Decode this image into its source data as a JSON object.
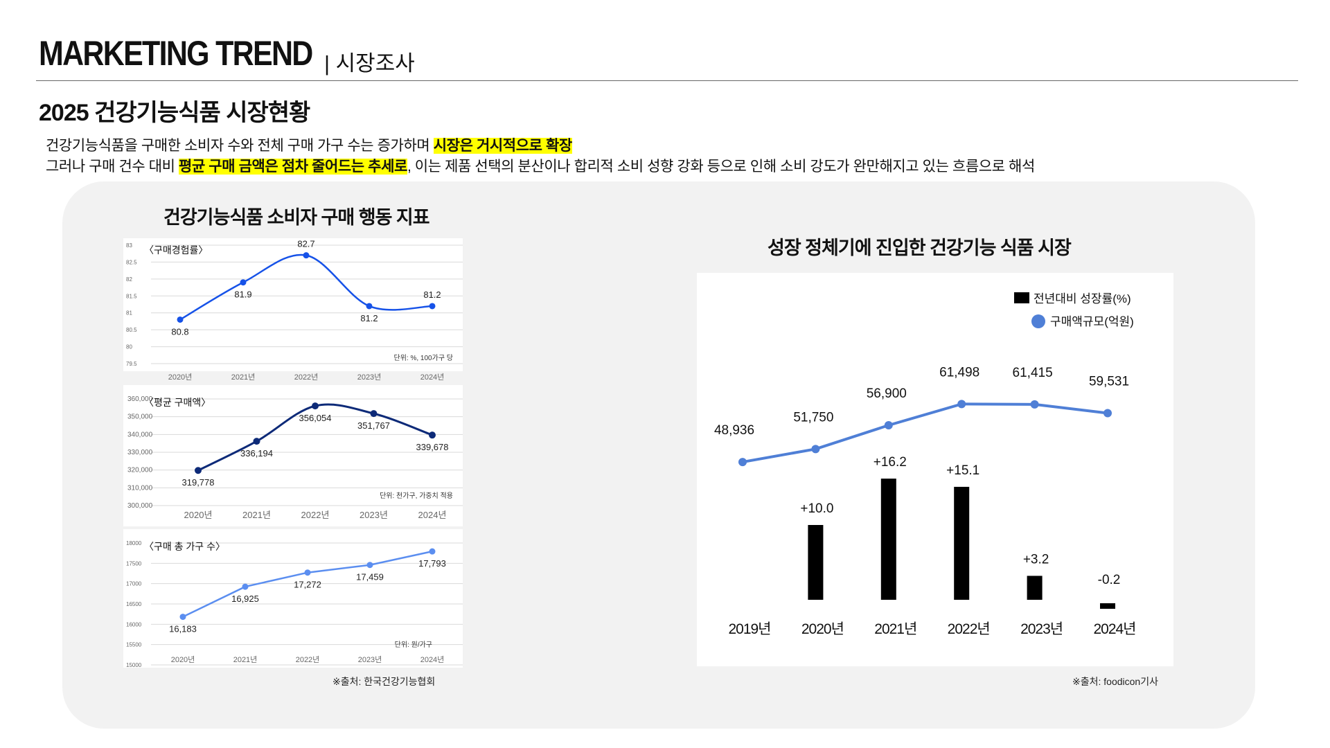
{
  "header": {
    "title": "MARKETING TREND",
    "subtitle": "| 시장조사"
  },
  "page_title": "2025 건강기능식품 시장현황",
  "summary": {
    "line1_text": "건강기능식품을 구매한 소비자 수와 전체 구매 가구 수는 증가하며 ",
    "line1_highlight": "시장은 거시적으로 확장",
    "line2_text_a": "그러나 구매 건수 대비 ",
    "line2_highlight": "평균 구매 금액은 점차 줄어드는 추세로",
    "line2_text_b": ", 이는 제품 선택의 분산이나 합리적 소비 성향 강화 등으로 인해 소비 강도가 완만해지고 있는 흐름으로 해석"
  },
  "left_panel": {
    "title": "건강기능식품 소비자 구매 행동 지표",
    "source": "※출처: 한국건강기능협회"
  },
  "right_panel": {
    "title": "성장 정체기에 진입한 건강기능 식품 시장",
    "source": "※출처: foodicon기사"
  },
  "colors": {
    "line1": "#1652e8",
    "line2": "#0d2a78",
    "line3": "#5b8ef0",
    "right_line": "#4f7fd6",
    "bar": "#000000",
    "highlight": "#ffff00"
  },
  "chart_data": [
    {
      "type": "line",
      "title": "〈구매경험률〉",
      "categories": [
        "2020년",
        "2021년",
        "2022년",
        "2023년",
        "2024년"
      ],
      "values": [
        80.8,
        81.9,
        82.7,
        81.2,
        81.2
      ],
      "value_labels": [
        "80.8",
        "81.9",
        "82.7",
        "81.2",
        "81.2"
      ],
      "yticks": [
        "83",
        "82.5",
        "82",
        "81.5",
        "81",
        "80.5",
        "80",
        "79.5"
      ],
      "ylim": [
        79.5,
        83
      ],
      "unit": "단위: %, 100가구 당"
    },
    {
      "type": "line",
      "title": "〈평균 구매액〉",
      "categories": [
        "2020년",
        "2021년",
        "2022년",
        "2023년",
        "2024년"
      ],
      "values": [
        319778,
        336194,
        356054,
        351767,
        339678
      ],
      "value_labels": [
        "319,778",
        "336,194",
        "356,054",
        "351,767",
        "339,678"
      ],
      "yticks": [
        "360,000",
        "350,000",
        "340,000",
        "330,000",
        "320,000",
        "310,000",
        "300,000"
      ],
      "ylim": [
        300000,
        360000
      ],
      "unit": "단위: 천가구, 가중치 적용"
    },
    {
      "type": "line",
      "title": "〈구매 총 가구 수〉",
      "categories": [
        "2020년",
        "2021년",
        "2022년",
        "2023년",
        "2024년"
      ],
      "values": [
        16183,
        16925,
        17272,
        17459,
        17793
      ],
      "value_labels": [
        "16,183",
        "16,925",
        "17,272",
        "17,459",
        "17,793"
      ],
      "yticks": [
        "18000",
        "17500",
        "17000",
        "16500",
        "16000",
        "15500",
        "15000"
      ],
      "ylim": [
        15000,
        18000
      ],
      "unit": "단위: 원/가구"
    },
    {
      "type": "bar+line",
      "categories": [
        "2019년",
        "2020년",
        "2021년",
        "2022년",
        "2023년",
        "2024년"
      ],
      "legend": [
        "전년대비 성장률(%)",
        "구매액규모(억원)"
      ],
      "series": [
        {
          "name": "전년대비 성장률(%)",
          "type": "bar",
          "values": [
            null,
            10.0,
            16.2,
            15.1,
            3.2,
            -0.2
          ],
          "labels": [
            "",
            "+10.0",
            "+16.2",
            "+15.1",
            "+3.2",
            "-0.2"
          ]
        },
        {
          "name": "구매액규모(억원)",
          "type": "line",
          "values": [
            48936,
            51750,
            56900,
            61498,
            61415,
            59531
          ],
          "labels": [
            "48,936",
            "51,750",
            "56,900",
            "61,498",
            "61,415",
            "59,531"
          ]
        }
      ]
    }
  ]
}
